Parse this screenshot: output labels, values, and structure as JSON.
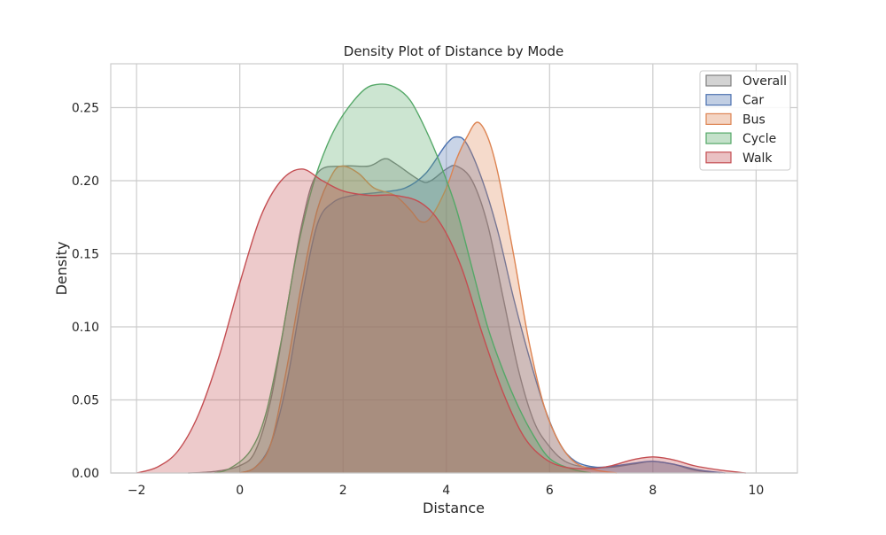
{
  "chart_data": {
    "type": "area",
    "title": "Density Plot of Distance by Mode",
    "xlabel": "Distance",
    "ylabel": "Density",
    "xlim": [
      -2.5,
      10.8
    ],
    "ylim": [
      0,
      0.28
    ],
    "xticks": [
      -2,
      0,
      2,
      4,
      6,
      8,
      10
    ],
    "xtick_labels": [
      "−2",
      "0",
      "2",
      "4",
      "6",
      "8",
      "10"
    ],
    "yticks": [
      0.0,
      0.05,
      0.1,
      0.15,
      0.2,
      0.25
    ],
    "ytick_labels": [
      "0.00",
      "0.05",
      "0.10",
      "0.15",
      "0.20",
      "0.25"
    ],
    "grid": true,
    "legend_position": "top-right",
    "series": [
      {
        "name": "Overall",
        "color": "#808080",
        "points": [
          [
            -1.0,
            0.0
          ],
          [
            -0.5,
            0.001
          ],
          [
            0.0,
            0.005
          ],
          [
            0.3,
            0.015
          ],
          [
            0.6,
            0.05
          ],
          [
            0.9,
            0.11
          ],
          [
            1.2,
            0.17
          ],
          [
            1.5,
            0.205
          ],
          [
            2.0,
            0.21
          ],
          [
            2.5,
            0.21
          ],
          [
            2.8,
            0.215
          ],
          [
            3.0,
            0.212
          ],
          [
            3.5,
            0.2
          ],
          [
            3.7,
            0.2
          ],
          [
            4.0,
            0.208
          ],
          [
            4.2,
            0.21
          ],
          [
            4.5,
            0.2
          ],
          [
            4.8,
            0.17
          ],
          [
            5.1,
            0.12
          ],
          [
            5.4,
            0.07
          ],
          [
            5.7,
            0.035
          ],
          [
            6.0,
            0.018
          ],
          [
            6.3,
            0.008
          ],
          [
            6.7,
            0.004
          ],
          [
            7.2,
            0.004
          ],
          [
            7.6,
            0.006
          ],
          [
            8.0,
            0.008
          ],
          [
            8.4,
            0.006
          ],
          [
            8.8,
            0.002
          ],
          [
            9.3,
            0.0
          ]
        ]
      },
      {
        "name": "Car",
        "color": "#4c72b0",
        "points": [
          [
            0.0,
            0.0
          ],
          [
            0.3,
            0.004
          ],
          [
            0.6,
            0.02
          ],
          [
            0.9,
            0.06
          ],
          [
            1.2,
            0.12
          ],
          [
            1.5,
            0.17
          ],
          [
            1.8,
            0.185
          ],
          [
            2.2,
            0.19
          ],
          [
            2.7,
            0.192
          ],
          [
            3.2,
            0.195
          ],
          [
            3.6,
            0.205
          ],
          [
            4.0,
            0.225
          ],
          [
            4.2,
            0.23
          ],
          [
            4.4,
            0.225
          ],
          [
            4.7,
            0.2
          ],
          [
            5.0,
            0.165
          ],
          [
            5.3,
            0.12
          ],
          [
            5.6,
            0.08
          ],
          [
            5.9,
            0.045
          ],
          [
            6.2,
            0.02
          ],
          [
            6.5,
            0.008
          ],
          [
            6.9,
            0.004
          ],
          [
            7.3,
            0.005
          ],
          [
            7.7,
            0.007
          ],
          [
            8.0,
            0.008
          ],
          [
            8.4,
            0.006
          ],
          [
            8.9,
            0.002
          ],
          [
            9.4,
            0.0
          ]
        ]
      },
      {
        "name": "Bus",
        "color": "#dd8452",
        "points": [
          [
            0.0,
            0.0
          ],
          [
            0.3,
            0.004
          ],
          [
            0.6,
            0.02
          ],
          [
            0.9,
            0.07
          ],
          [
            1.2,
            0.13
          ],
          [
            1.5,
            0.18
          ],
          [
            1.8,
            0.205
          ],
          [
            2.0,
            0.21
          ],
          [
            2.3,
            0.205
          ],
          [
            2.6,
            0.195
          ],
          [
            3.0,
            0.19
          ],
          [
            3.3,
            0.18
          ],
          [
            3.5,
            0.172
          ],
          [
            3.7,
            0.175
          ],
          [
            4.0,
            0.195
          ],
          [
            4.2,
            0.215
          ],
          [
            4.4,
            0.23
          ],
          [
            4.6,
            0.24
          ],
          [
            4.8,
            0.23
          ],
          [
            5.0,
            0.205
          ],
          [
            5.3,
            0.15
          ],
          [
            5.6,
            0.09
          ],
          [
            5.9,
            0.045
          ],
          [
            6.2,
            0.02
          ],
          [
            6.5,
            0.007
          ],
          [
            6.9,
            0.002
          ],
          [
            7.3,
            0.0
          ]
        ]
      },
      {
        "name": "Cycle",
        "color": "#55a868",
        "points": [
          [
            -0.5,
            0.0
          ],
          [
            -0.2,
            0.003
          ],
          [
            0.2,
            0.015
          ],
          [
            0.5,
            0.04
          ],
          [
            0.8,
            0.09
          ],
          [
            1.1,
            0.15
          ],
          [
            1.4,
            0.195
          ],
          [
            1.7,
            0.225
          ],
          [
            2.0,
            0.245
          ],
          [
            2.4,
            0.262
          ],
          [
            2.7,
            0.266
          ],
          [
            3.0,
            0.264
          ],
          [
            3.3,
            0.255
          ],
          [
            3.6,
            0.235
          ],
          [
            3.9,
            0.21
          ],
          [
            4.2,
            0.18
          ],
          [
            4.5,
            0.14
          ],
          [
            4.8,
            0.1
          ],
          [
            5.1,
            0.07
          ],
          [
            5.4,
            0.045
          ],
          [
            5.7,
            0.025
          ],
          [
            6.0,
            0.01
          ],
          [
            6.4,
            0.003
          ],
          [
            6.8,
            0.0
          ]
        ]
      },
      {
        "name": "Walk",
        "color": "#c44e52",
        "points": [
          [
            -2.0,
            0.0
          ],
          [
            -1.6,
            0.004
          ],
          [
            -1.2,
            0.015
          ],
          [
            -0.8,
            0.04
          ],
          [
            -0.4,
            0.08
          ],
          [
            0.0,
            0.13
          ],
          [
            0.4,
            0.175
          ],
          [
            0.8,
            0.2
          ],
          [
            1.2,
            0.208
          ],
          [
            1.6,
            0.2
          ],
          [
            2.0,
            0.193
          ],
          [
            2.5,
            0.19
          ],
          [
            3.0,
            0.19
          ],
          [
            3.5,
            0.185
          ],
          [
            3.9,
            0.17
          ],
          [
            4.3,
            0.14
          ],
          [
            4.7,
            0.095
          ],
          [
            5.1,
            0.055
          ],
          [
            5.5,
            0.025
          ],
          [
            5.9,
            0.01
          ],
          [
            6.3,
            0.004
          ],
          [
            6.8,
            0.003
          ],
          [
            7.2,
            0.005
          ],
          [
            7.6,
            0.009
          ],
          [
            8.0,
            0.011
          ],
          [
            8.4,
            0.009
          ],
          [
            8.8,
            0.005
          ],
          [
            9.3,
            0.002
          ],
          [
            9.8,
            0.0
          ]
        ]
      }
    ]
  }
}
